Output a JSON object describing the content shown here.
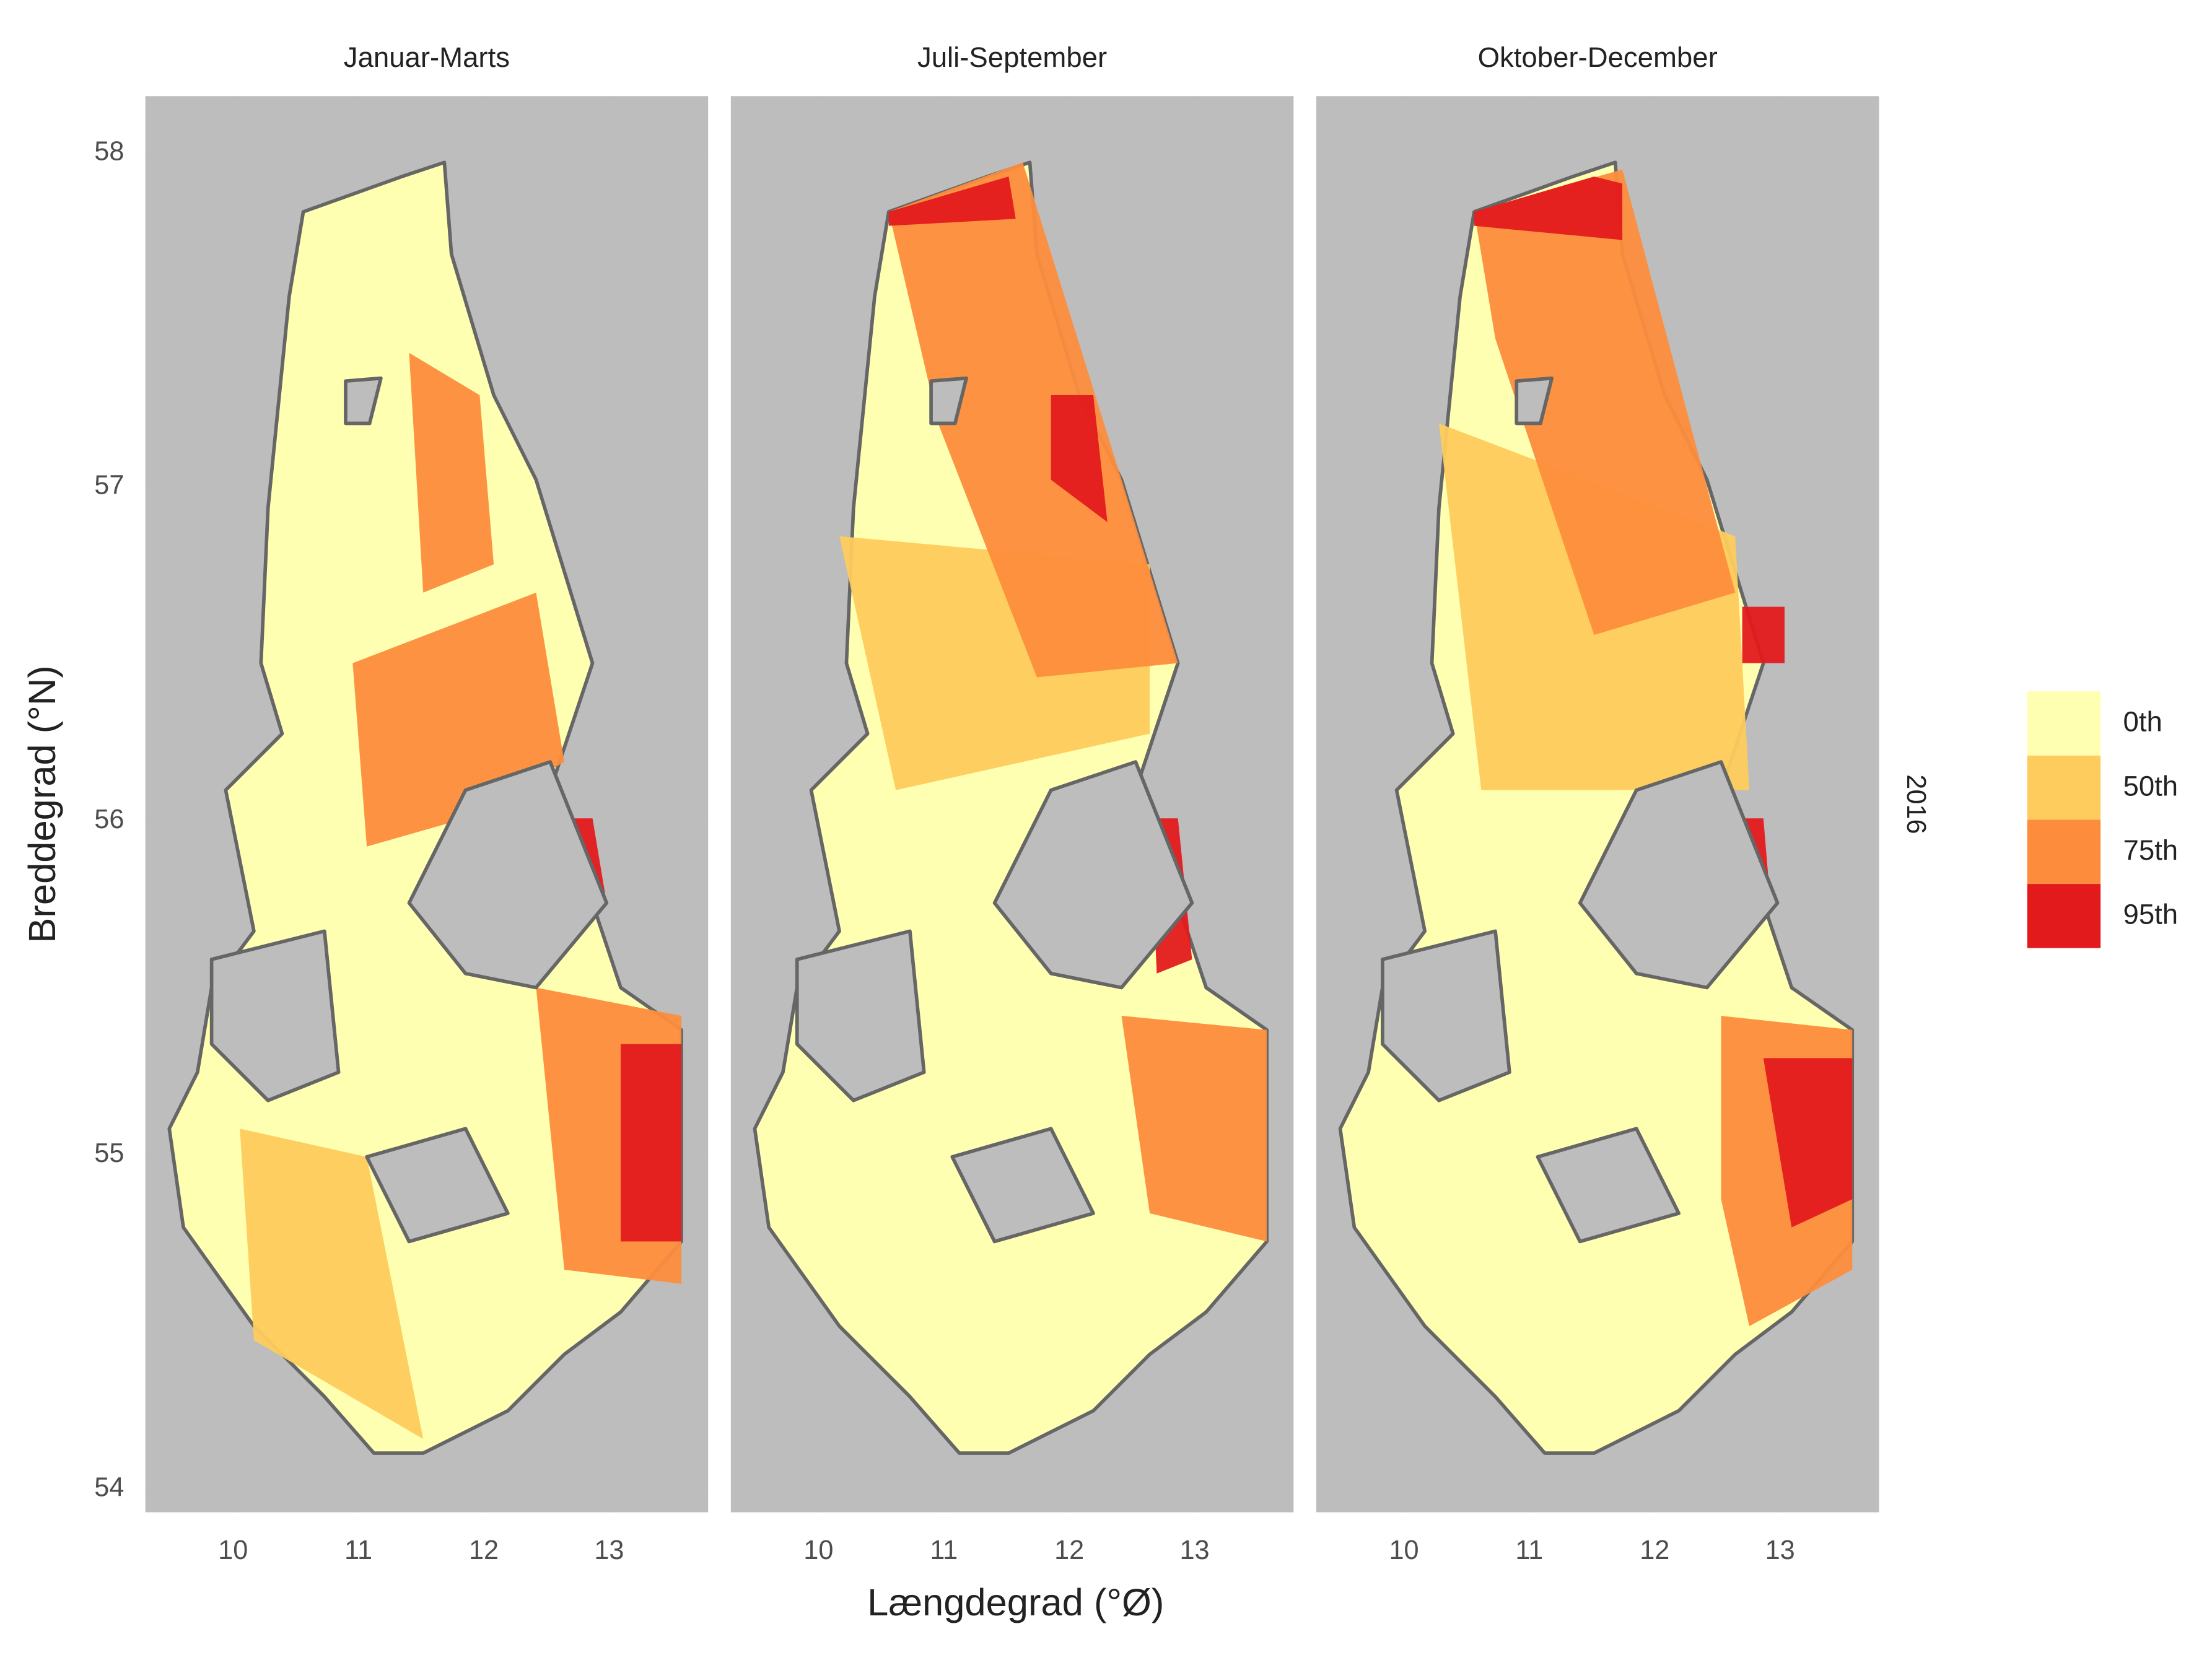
{
  "chart_data": {
    "type": "map",
    "panels": [
      {
        "title": "Januar-Marts"
      },
      {
        "title": "Juli-September"
      },
      {
        "title": "Oktober-December"
      }
    ],
    "x_label": "Længdegrad (°Ø)",
    "y_label": "Breddegrad (°N)",
    "xlim": [
      9.3,
      13.79
    ],
    "ylim": [
      53.93,
      58.17
    ],
    "xticks": [
      10,
      11,
      12,
      13
    ],
    "yticks": [
      54,
      55,
      56,
      57,
      58
    ],
    "grid": true,
    "legend": {
      "position": "right",
      "items": [
        {
          "label": "0th",
          "color": "#ffffb2"
        },
        {
          "label": "50th",
          "color": "#fecc5c"
        },
        {
          "label": "75th",
          "color": "#fd8d3c"
        },
        {
          "label": "95th",
          "color": "#e31a1c"
        }
      ]
    },
    "strip": "2016"
  }
}
